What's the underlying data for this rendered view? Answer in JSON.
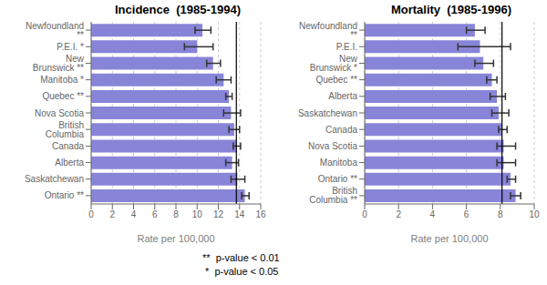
{
  "chart_data": [
    {
      "type": "bar",
      "orientation": "horizontal",
      "title": "Incidence  (1985-1994)",
      "xlabel": "Rate per 100,000",
      "categories": [
        "Newfoundland **",
        "P.E.I. *",
        "New Brunswick **",
        "Manitoba *",
        "Quebec **",
        "Nova Scotia",
        "British Columbia",
        "Canada",
        "Alberta",
        "Saskatchewan",
        "Ontario **"
      ],
      "values": [
        10.5,
        10.0,
        11.5,
        12.5,
        13.0,
        13.2,
        13.5,
        13.7,
        13.3,
        13.8,
        14.5
      ],
      "ci_low": [
        9.8,
        8.8,
        10.9,
        11.8,
        12.7,
        12.5,
        13.0,
        13.4,
        12.7,
        13.2,
        14.2
      ],
      "ci_high": [
        11.3,
        11.5,
        12.2,
        13.2,
        13.3,
        14.1,
        14.0,
        14.1,
        13.9,
        14.5,
        14.9
      ],
      "reference_line": 13.7,
      "xlim": [
        0,
        16
      ],
      "xticks": [
        0,
        2,
        4,
        6,
        8,
        10,
        12,
        14,
        16
      ],
      "grid": true
    },
    {
      "type": "bar",
      "orientation": "horizontal",
      "title": "Mortality  (1985-1996)",
      "xlabel": "Rate per 100,000",
      "categories": [
        "Newfoundland **",
        "P.E.I.",
        "New Brunswick *",
        "Quebec **",
        "Alberta",
        "Saskatchewan",
        "Canada",
        "Nova Scotia",
        "Manitoba",
        "Ontario **",
        "British Columbia **"
      ],
      "values": [
        6.5,
        6.8,
        7.0,
        7.5,
        7.8,
        7.9,
        8.1,
        8.2,
        8.2,
        8.6,
        8.9
      ],
      "ci_low": [
        6.0,
        5.5,
        6.5,
        7.2,
        7.4,
        7.5,
        7.9,
        7.8,
        7.8,
        8.4,
        8.6
      ],
      "ci_high": [
        7.1,
        8.6,
        7.6,
        7.8,
        8.3,
        8.5,
        8.4,
        8.9,
        8.9,
        8.9,
        9.2
      ],
      "reference_line": 8.1,
      "xlim": [
        0,
        10
      ],
      "xticks": [
        0,
        2,
        4,
        6,
        8,
        10
      ],
      "grid": true
    }
  ],
  "annotations": [
    "**  p-value < 0.01",
    " *  p-value < 0.05"
  ]
}
